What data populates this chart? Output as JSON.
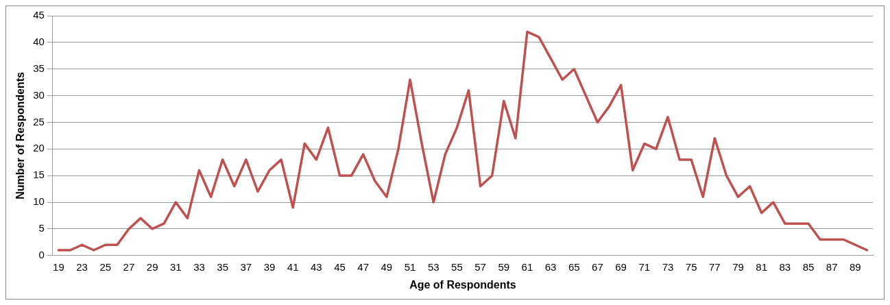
{
  "chart_data": {
    "type": "line",
    "xlabel": "Age of Respondents",
    "ylabel": "Number of Respondents",
    "categories": [
      "19",
      null,
      "23",
      null,
      "25",
      null,
      "27",
      null,
      "29",
      null,
      "31",
      null,
      "33",
      null,
      "35",
      null,
      "37",
      null,
      "39",
      null,
      "41",
      null,
      "43",
      null,
      "45",
      null,
      "47",
      null,
      "49",
      null,
      "51",
      null,
      "53",
      null,
      "55",
      null,
      "57",
      null,
      "59",
      null,
      "61",
      null,
      "63",
      null,
      "65",
      null,
      "67",
      null,
      "69",
      null,
      "71",
      null,
      "73",
      null,
      "75",
      null,
      "77",
      null,
      "79",
      null,
      "81",
      null,
      "83",
      null,
      "85",
      null,
      "87",
      null,
      "89",
      null
    ],
    "series": [
      {
        "color": "#c0504d",
        "values": [
          1,
          1,
          2,
          1,
          2,
          2,
          5,
          7,
          5,
          6,
          10,
          7,
          16,
          11,
          18,
          13,
          18,
          12,
          16,
          18,
          9,
          21,
          18,
          24,
          15,
          15,
          19,
          14,
          11,
          20,
          33,
          21,
          10,
          19,
          24,
          31,
          13,
          15,
          29,
          22,
          42,
          41,
          37,
          33,
          35,
          30,
          25,
          28,
          32,
          16,
          21,
          20,
          26,
          18,
          18,
          11,
          22,
          15,
          11,
          13,
          8,
          10,
          6,
          6,
          6,
          3,
          3,
          3,
          2,
          1
        ]
      }
    ],
    "ylim": [
      0,
      45
    ],
    "yticks": [
      0,
      5,
      10,
      15,
      20,
      25,
      30,
      35,
      40,
      45
    ],
    "grid": "y",
    "legend": false,
    "marker": "none",
    "line_style": "solid"
  }
}
